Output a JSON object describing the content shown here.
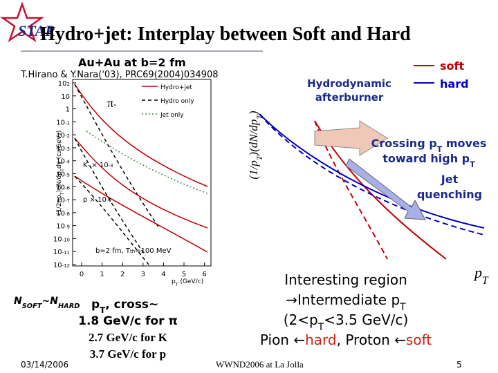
{
  "logo": "STAR",
  "title": "Hydro+jet: Interplay between Soft and Hard",
  "subtitle": "Au+Au at b=2 fm",
  "reference": "T.Hirano & Y.Nara('03), PRC69(2004)034908",
  "left_plot": {
    "y_label": [
      {
        "t": "(1/2πp"
      },
      {
        "t": "T",
        "s": "sub"
      },
      {
        "t": ")dN/dp"
      },
      {
        "t": "T",
        "s": "sub"
      },
      {
        "t": "dy (c"
      },
      {
        "t": "2",
        "s": "sup"
      },
      {
        "t": "/GeV"
      },
      {
        "t": "2",
        "s": "sup"
      },
      {
        "t": ")"
      }
    ],
    "yticks": [
      [
        {
          "t": "10"
        },
        {
          "t": "2",
          "s": "sup"
        }
      ],
      [
        {
          "t": "10"
        }
      ],
      [
        {
          "t": "1"
        }
      ],
      [
        {
          "t": "10"
        },
        {
          "t": "-1",
          "s": "sup"
        }
      ],
      [
        {
          "t": "10"
        },
        {
          "t": "-2",
          "s": "sup"
        }
      ],
      [
        {
          "t": "10"
        },
        {
          "t": "-3",
          "s": "sup"
        }
      ],
      [
        {
          "t": "10"
        },
        {
          "t": "-4",
          "s": "sup"
        }
      ],
      [
        {
          "t": "10"
        },
        {
          "t": "-5",
          "s": "sup"
        }
      ],
      [
        {
          "t": "10"
        },
        {
          "t": "-6",
          "s": "sup"
        }
      ],
      [
        {
          "t": "10"
        },
        {
          "t": "-7",
          "s": "sup"
        }
      ],
      [
        {
          "t": "10"
        },
        {
          "t": "-8",
          "s": "sup"
        }
      ],
      [
        {
          "t": "10"
        },
        {
          "t": "-9",
          "s": "sup"
        }
      ],
      [
        {
          "t": "10"
        },
        {
          "t": "-10",
          "s": "sup"
        }
      ],
      [
        {
          "t": "10"
        },
        {
          "t": "-11",
          "s": "sup"
        }
      ],
      [
        {
          "t": "10"
        },
        {
          "t": "-12",
          "s": "sup"
        }
      ]
    ],
    "xticks": [
      "0",
      "1",
      "2",
      "3",
      "4",
      "5",
      "6"
    ],
    "x_label": [
      {
        "t": "p"
      },
      {
        "t": "T",
        "s": "sub"
      },
      {
        "t": " (GeV/c)"
      }
    ],
    "legend": [
      "Hydro+jet",
      "Hydro only",
      "Jet only"
    ],
    "pion": [
      {
        "t": "π"
      },
      {
        "t": "-",
        "s": "sup"
      }
    ],
    "kaon": [
      {
        "t": "K"
      },
      {
        "t": "-",
        "s": "sup"
      },
      {
        "t": " × 10"
      },
      {
        "t": "-3",
        "s": "sup"
      }
    ],
    "proton": [
      {
        "t": "p × 10"
      },
      {
        "t": "-6",
        "s": "sup"
      }
    ],
    "params": [
      {
        "t": "b=2 fm, T"
      },
      {
        "t": "th",
        "s": "sup"
      },
      {
        "t": "=100 MeV"
      }
    ]
  },
  "right_plot": {
    "y_label": [
      {
        "t": "(1/p"
      },
      {
        "t": "T",
        "s": "sub"
      },
      {
        "t": ")(dN/dp"
      },
      {
        "t": "T",
        "s": "sub"
      },
      {
        "t": ")"
      }
    ],
    "legend": [
      "soft",
      "hard"
    ],
    "afterburner": [
      "Hydrodynamic",
      "afterburner"
    ],
    "crossing": [
      [
        {
          "t": "Crossing p"
        },
        {
          "t": "T",
          "s": "sub"
        },
        {
          "t": " moves"
        }
      ],
      [
        {
          "t": "toward high p"
        },
        {
          "t": "T",
          "s": "sub"
        }
      ]
    ],
    "jet": [
      "Jet",
      "quenching"
    ],
    "x_label": [
      {
        "t": "p"
      },
      {
        "t": "T",
        "s": "sub"
      }
    ]
  },
  "n_soft_hard": [
    {
      "t": "N"
    },
    {
      "t": "SOFT",
      "s": "sub"
    },
    {
      "t": "~N"
    },
    {
      "t": "HARD",
      "s": "sub"
    }
  ],
  "crossing_values": [
    [
      {
        "t": "p"
      },
      {
        "t": "T",
        "s": "sub"
      },
      {
        "t": ", cross~"
      }
    ],
    [
      {
        "t": "1.8 GeV/c for π"
      }
    ],
    [
      {
        "t": "2.7 GeV/c for K"
      }
    ],
    [
      {
        "t": "3.7 GeV/c for p"
      }
    ]
  ],
  "interesting": [
    [
      {
        "t": "Interesting region"
      }
    ],
    [
      {
        "t": "→Intermediate p"
      },
      {
        "t": "T",
        "s": "sub"
      }
    ],
    [
      {
        "t": "(2<p"
      },
      {
        "t": "T",
        "s": "sub"
      },
      {
        "t": "<3.5 GeV/c)"
      }
    ],
    [
      {
        "t": "Pion ←"
      },
      {
        "t": "hard",
        "c": "#d02010"
      },
      {
        "t": ", Proton ←"
      },
      {
        "t": "soft",
        "c": "#d02010"
      }
    ]
  ],
  "footer": {
    "date": "03/14/2006",
    "venue": "WWND2006 at La Jolla",
    "page": "5"
  }
}
